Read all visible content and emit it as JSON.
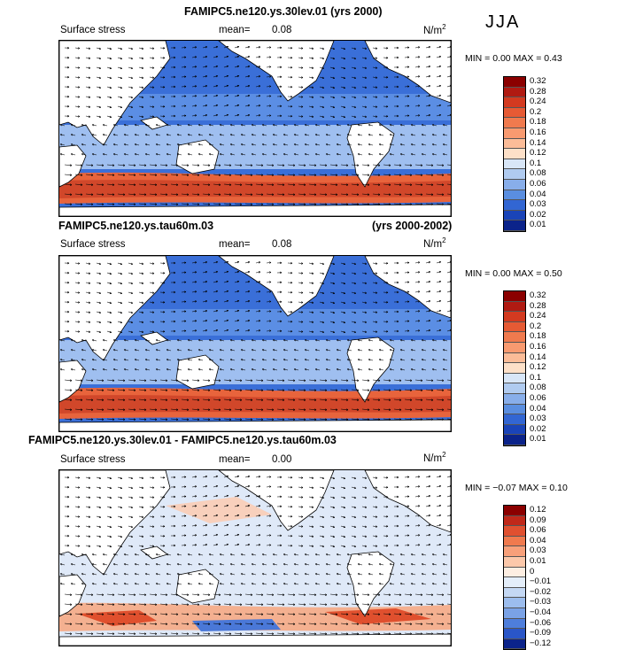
{
  "season": "JJA",
  "units": {
    "base": "N/m",
    "exp": "2"
  },
  "panels": [
    {
      "title_left": "FAMIPC5.ne120.ys.30lev.01 (yrs 2000)",
      "title_right": "",
      "variable": "Surface stress",
      "mean_label": "mean=",
      "mean_value": "0.08",
      "stats": "MIN =   0.00  MAX =    0.43",
      "colorbar_labels": [
        "0.32",
        "0.28",
        "0.24",
        "0.2",
        "0.18",
        "0.16",
        "0.14",
        "0.12",
        "0.1",
        "0.08",
        "0.06",
        "0.04",
        "0.03",
        "0.02",
        "0.01"
      ],
      "colorbar_colors": [
        "#8b0000",
        "#b01a12",
        "#d33a20",
        "#e65a34",
        "#f07a4e",
        "#f89a70",
        "#fbbc98",
        "#fde0c8",
        "#d8e6f7",
        "#b0cbf0",
        "#88aeea",
        "#5a8ee0",
        "#3266d3",
        "#1a44b8",
        "#0b238a"
      ]
    },
    {
      "title_left": "FAMIPC5.ne120.ys.tau60m.03",
      "title_right": "(yrs 2000-2002)",
      "variable": "Surface stress",
      "mean_label": "mean=",
      "mean_value": "0.08",
      "stats": "MIN =   0.00  MAX =    0.50",
      "colorbar_labels": [
        "0.32",
        "0.28",
        "0.24",
        "0.2",
        "0.18",
        "0.16",
        "0.14",
        "0.12",
        "0.1",
        "0.08",
        "0.06",
        "0.04",
        "0.03",
        "0.02",
        "0.01"
      ],
      "colorbar_colors": [
        "#8b0000",
        "#b01a12",
        "#d33a20",
        "#e65a34",
        "#f07a4e",
        "#f89a70",
        "#fbbc98",
        "#fde0c8",
        "#d8e6f7",
        "#b0cbf0",
        "#88aeea",
        "#5a8ee0",
        "#3266d3",
        "#1a44b8",
        "#0b238a"
      ]
    },
    {
      "title_left": "FAMIPC5.ne120.ys.30lev.01 - FAMIPC5.ne120.ys.tau60m.03",
      "title_right": "",
      "variable": "Surface stress",
      "mean_label": "mean=",
      "mean_value": "0.00",
      "stats": "MIN =  −0.07  MAX =    0.10",
      "colorbar_labels": [
        "0.12",
        "0.09",
        "0.06",
        "0.04",
        "0.03",
        "0.01",
        "0",
        "−0.01",
        "−0.02",
        "−0.03",
        "−0.04",
        "−0.06",
        "−0.09",
        "−0.12"
      ],
      "colorbar_colors": [
        "#8b0000",
        "#c0281a",
        "#e05030",
        "#f07a4e",
        "#f8a07a",
        "#fcc8aa",
        "#fdeee2",
        "#e4eefa",
        "#c4d8f4",
        "#9cbdee",
        "#7aa2e6",
        "#4e7edc",
        "#2a56c8",
        "#0b238a"
      ]
    }
  ]
}
